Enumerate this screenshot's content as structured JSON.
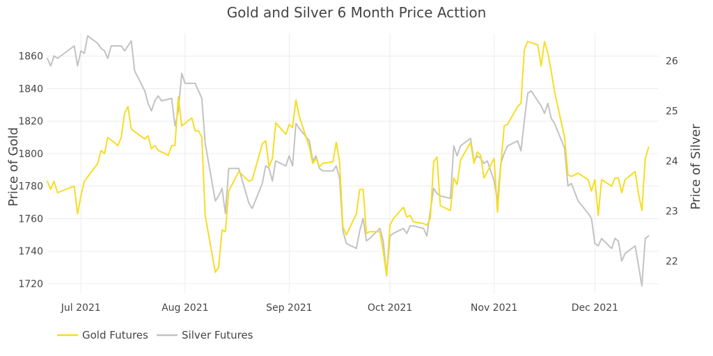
{
  "chart_data": {
    "type": "line",
    "title": "Gold and Silver 6 Month Price Acttion",
    "ylabel_left": "Price of Gold",
    "ylabel_right": "Price of Silver",
    "x_range": [
      "2021-06-21",
      "2021-12-20"
    ],
    "x_ticks": [
      {
        "date": "2021-07-01",
        "label": "Jul 2021"
      },
      {
        "date": "2021-08-01",
        "label": "Aug 2021"
      },
      {
        "date": "2021-09-01",
        "label": "Sep 2021"
      },
      {
        "date": "2021-10-01",
        "label": "Oct 2021"
      },
      {
        "date": "2021-11-01",
        "label": "Nov 2021"
      },
      {
        "date": "2021-12-01",
        "label": "Dec 2021"
      }
    ],
    "y_left": {
      "range": [
        1714,
        1874
      ],
      "ticks": [
        1720,
        1740,
        1760,
        1780,
        1800,
        1820,
        1840,
        1860
      ]
    },
    "y_right": {
      "range": [
        21.35,
        26.55
      ],
      "ticks": [
        22,
        23,
        24,
        25,
        26
      ]
    },
    "legend_position": "bottom-left",
    "grid": true,
    "series": [
      {
        "name": "Gold Futures",
        "axis": "left",
        "color": "#f6dd22",
        "points": [
          [
            "2021-06-21",
            1783
          ],
          [
            "2021-06-22",
            1778
          ],
          [
            "2021-06-23",
            1783
          ],
          [
            "2021-06-24",
            1776
          ],
          [
            "2021-06-29",
            1780
          ],
          [
            "2021-06-30",
            1763
          ],
          [
            "2021-07-01",
            1774
          ],
          [
            "2021-07-02",
            1783
          ],
          [
            "2021-07-06",
            1794
          ],
          [
            "2021-07-07",
            1802
          ],
          [
            "2021-07-08",
            1800
          ],
          [
            "2021-07-09",
            1810
          ],
          [
            "2021-07-12",
            1805
          ],
          [
            "2021-07-13",
            1810
          ],
          [
            "2021-07-14",
            1825
          ],
          [
            "2021-07-15",
            1829
          ],
          [
            "2021-07-16",
            1815
          ],
          [
            "2021-07-20",
            1809
          ],
          [
            "2021-07-21",
            1811
          ],
          [
            "2021-07-22",
            1803
          ],
          [
            "2021-07-23",
            1805
          ],
          [
            "2021-07-24",
            1802
          ],
          [
            "2021-07-27",
            1799
          ],
          [
            "2021-07-28",
            1805
          ],
          [
            "2021-07-29",
            1805
          ],
          [
            "2021-07-30",
            1835
          ],
          [
            "2021-07-31",
            1817
          ],
          [
            "2021-08-03",
            1822
          ],
          [
            "2021-08-04",
            1814
          ],
          [
            "2021-08-05",
            1814
          ],
          [
            "2021-08-06",
            1810
          ],
          [
            "2021-08-07",
            1762
          ],
          [
            "2021-08-10",
            1727
          ],
          [
            "2021-08-11",
            1730
          ],
          [
            "2021-08-12",
            1753
          ],
          [
            "2021-08-13",
            1752
          ],
          [
            "2021-08-14",
            1777
          ],
          [
            "2021-08-17",
            1789
          ],
          [
            "2021-08-20",
            1783
          ],
          [
            "2021-08-21",
            1784
          ],
          [
            "2021-08-24",
            1806
          ],
          [
            "2021-08-25",
            1808
          ],
          [
            "2021-08-26",
            1792
          ],
          [
            "2021-08-27",
            1797
          ],
          [
            "2021-08-28",
            1819
          ],
          [
            "2021-08-31",
            1812
          ],
          [
            "2021-09-01",
            1818
          ],
          [
            "2021-09-02",
            1816
          ],
          [
            "2021-09-03",
            1833
          ],
          [
            "2021-09-04",
            1823
          ],
          [
            "2021-09-07",
            1804
          ],
          [
            "2021-09-08",
            1794
          ],
          [
            "2021-09-09",
            1797
          ],
          [
            "2021-09-10",
            1792
          ],
          [
            "2021-09-11",
            1794
          ],
          [
            "2021-09-14",
            1795
          ],
          [
            "2021-09-15",
            1807
          ],
          [
            "2021-09-16",
            1795
          ],
          [
            "2021-09-17",
            1755
          ],
          [
            "2021-09-18",
            1750
          ],
          [
            "2021-09-21",
            1763
          ],
          [
            "2021-09-22",
            1778
          ],
          [
            "2021-09-23",
            1778
          ],
          [
            "2021-09-24",
            1751
          ],
          [
            "2021-09-25",
            1752
          ],
          [
            "2021-09-28",
            1752
          ],
          [
            "2021-09-29",
            1740
          ],
          [
            "2021-09-30",
            1725
          ],
          [
            "2021-10-01",
            1756
          ],
          [
            "2021-10-02",
            1760
          ],
          [
            "2021-10-05",
            1767
          ],
          [
            "2021-10-06",
            1761
          ],
          [
            "2021-10-07",
            1762
          ],
          [
            "2021-10-08",
            1758
          ],
          [
            "2021-10-11",
            1757
          ],
          [
            "2021-10-12",
            1756
          ],
          [
            "2021-10-13",
            1760
          ],
          [
            "2021-10-14",
            1795
          ],
          [
            "2021-10-15",
            1798
          ],
          [
            "2021-10-16",
            1768
          ],
          [
            "2021-10-19",
            1765
          ],
          [
            "2021-10-20",
            1785
          ],
          [
            "2021-10-21",
            1781
          ],
          [
            "2021-10-22",
            1796
          ],
          [
            "2021-10-25",
            1807
          ],
          [
            "2021-10-26",
            1794
          ],
          [
            "2021-10-27",
            1801
          ],
          [
            "2021-10-28",
            1799
          ],
          [
            "2021-10-29",
            1785
          ],
          [
            "2021-10-30",
            1789
          ],
          [
            "2021-11-01",
            1797
          ],
          [
            "2021-11-02",
            1764
          ],
          [
            "2021-11-03",
            1793
          ],
          [
            "2021-11-04",
            1817
          ],
          [
            "2021-11-05",
            1818
          ],
          [
            "2021-11-08",
            1829
          ],
          [
            "2021-11-09",
            1831
          ],
          [
            "2021-11-10",
            1864
          ],
          [
            "2021-11-11",
            1869
          ],
          [
            "2021-11-14",
            1867
          ],
          [
            "2021-11-15",
            1854
          ],
          [
            "2021-11-16",
            1869
          ],
          [
            "2021-11-17",
            1862
          ],
          [
            "2021-11-18",
            1851
          ],
          [
            "2021-11-19",
            1838
          ],
          [
            "2021-11-22",
            1810
          ],
          [
            "2021-11-23",
            1787
          ],
          [
            "2021-11-24",
            1786
          ],
          [
            "2021-11-26",
            1788
          ],
          [
            "2021-11-29",
            1784
          ],
          [
            "2021-11-30",
            1777
          ],
          [
            "2021-12-01",
            1784
          ],
          [
            "2021-12-02",
            1762
          ],
          [
            "2021-12-03",
            1784
          ],
          [
            "2021-12-06",
            1780
          ],
          [
            "2021-12-07",
            1785
          ],
          [
            "2021-12-08",
            1785
          ],
          [
            "2021-12-09",
            1776
          ],
          [
            "2021-12-10",
            1784
          ],
          [
            "2021-12-13",
            1789
          ],
          [
            "2021-12-14",
            1775
          ],
          [
            "2021-12-15",
            1765
          ],
          [
            "2021-12-16",
            1797
          ],
          [
            "2021-12-17",
            1804
          ]
        ]
      },
      {
        "name": "Silver Futures",
        "axis": "right",
        "color": "#c2c2c2",
        "points": [
          [
            "2021-06-21",
            26.05
          ],
          [
            "2021-06-22",
            25.9
          ],
          [
            "2021-06-23",
            26.1
          ],
          [
            "2021-06-24",
            26.05
          ],
          [
            "2021-06-29",
            26.3
          ],
          [
            "2021-06-30",
            25.9
          ],
          [
            "2021-07-01",
            26.2
          ],
          [
            "2021-07-02",
            26.15
          ],
          [
            "2021-07-03",
            26.5
          ],
          [
            "2021-07-06",
            26.35
          ],
          [
            "2021-07-07",
            26.25
          ],
          [
            "2021-07-08",
            26.2
          ],
          [
            "2021-07-09",
            26.05
          ],
          [
            "2021-07-10",
            26.3
          ],
          [
            "2021-07-13",
            26.3
          ],
          [
            "2021-07-14",
            26.2
          ],
          [
            "2021-07-16",
            26.4
          ],
          [
            "2021-07-17",
            25.8
          ],
          [
            "2021-07-20",
            25.4
          ],
          [
            "2021-07-21",
            25.15
          ],
          [
            "2021-07-22",
            25.0
          ],
          [
            "2021-07-23",
            25.2
          ],
          [
            "2021-07-24",
            25.3
          ],
          [
            "2021-07-25",
            25.2
          ],
          [
            "2021-07-28",
            25.25
          ],
          [
            "2021-07-29",
            24.7
          ],
          [
            "2021-07-30",
            25.0
          ],
          [
            "2021-07-31",
            25.75
          ],
          [
            "2021-08-01",
            25.55
          ],
          [
            "2021-08-04",
            25.55
          ],
          [
            "2021-08-05",
            25.4
          ],
          [
            "2021-08-06",
            25.25
          ],
          [
            "2021-08-07",
            24.35
          ],
          [
            "2021-08-10",
            23.2
          ],
          [
            "2021-08-11",
            23.3
          ],
          [
            "2021-08-12",
            23.45
          ],
          [
            "2021-08-13",
            22.95
          ],
          [
            "2021-08-14",
            23.85
          ],
          [
            "2021-08-17",
            23.85
          ],
          [
            "2021-08-20",
            23.15
          ],
          [
            "2021-08-21",
            23.05
          ],
          [
            "2021-08-24",
            23.55
          ],
          [
            "2021-08-25",
            23.9
          ],
          [
            "2021-08-26",
            23.85
          ],
          [
            "2021-08-27",
            23.6
          ],
          [
            "2021-08-28",
            24.0
          ],
          [
            "2021-08-31",
            23.9
          ],
          [
            "2021-09-01",
            24.1
          ],
          [
            "2021-09-02",
            23.9
          ],
          [
            "2021-09-03",
            24.75
          ],
          [
            "2021-09-04",
            24.65
          ],
          [
            "2021-09-07",
            24.4
          ],
          [
            "2021-09-08",
            24.0
          ],
          [
            "2021-09-09",
            24.1
          ],
          [
            "2021-09-10",
            23.85
          ],
          [
            "2021-09-11",
            23.8
          ],
          [
            "2021-09-14",
            23.8
          ],
          [
            "2021-09-15",
            23.9
          ],
          [
            "2021-09-16",
            23.65
          ],
          [
            "2021-09-17",
            22.6
          ],
          [
            "2021-09-18",
            22.35
          ],
          [
            "2021-09-21",
            22.25
          ],
          [
            "2021-09-22",
            22.6
          ],
          [
            "2021-09-23",
            22.85
          ],
          [
            "2021-09-24",
            22.4
          ],
          [
            "2021-09-25",
            22.45
          ],
          [
            "2021-09-28",
            22.65
          ],
          [
            "2021-09-29",
            22.4
          ],
          [
            "2021-09-30",
            21.7
          ],
          [
            "2021-10-01",
            22.5
          ],
          [
            "2021-10-02",
            22.55
          ],
          [
            "2021-10-05",
            22.65
          ],
          [
            "2021-10-06",
            22.55
          ],
          [
            "2021-10-07",
            22.7
          ],
          [
            "2021-10-08",
            22.7
          ],
          [
            "2021-10-11",
            22.65
          ],
          [
            "2021-10-12",
            22.5
          ],
          [
            "2021-10-13",
            23.0
          ],
          [
            "2021-10-14",
            23.45
          ],
          [
            "2021-10-15",
            23.35
          ],
          [
            "2021-10-16",
            23.3
          ],
          [
            "2021-10-19",
            23.25
          ],
          [
            "2021-10-20",
            24.3
          ],
          [
            "2021-10-21",
            24.1
          ],
          [
            "2021-10-22",
            24.3
          ],
          [
            "2021-10-25",
            24.45
          ],
          [
            "2021-10-26",
            24.0
          ],
          [
            "2021-10-27",
            24.1
          ],
          [
            "2021-10-28",
            24.05
          ],
          [
            "2021-10-29",
            23.95
          ],
          [
            "2021-10-30",
            24.0
          ],
          [
            "2021-11-01",
            23.6
          ],
          [
            "2021-11-02",
            23.2
          ],
          [
            "2021-11-03",
            23.95
          ],
          [
            "2021-11-04",
            24.15
          ],
          [
            "2021-11-05",
            24.3
          ],
          [
            "2021-11-08",
            24.4
          ],
          [
            "2021-11-09",
            24.2
          ],
          [
            "2021-11-10",
            24.8
          ],
          [
            "2021-11-11",
            25.35
          ],
          [
            "2021-11-12",
            25.4
          ],
          [
            "2021-11-15",
            25.1
          ],
          [
            "2021-11-16",
            24.95
          ],
          [
            "2021-11-17",
            25.15
          ],
          [
            "2021-11-18",
            24.85
          ],
          [
            "2021-11-19",
            24.75
          ],
          [
            "2021-11-22",
            24.25
          ],
          [
            "2021-11-23",
            23.5
          ],
          [
            "2021-11-24",
            23.55
          ],
          [
            "2021-11-26",
            23.2
          ],
          [
            "2021-11-29",
            22.95
          ],
          [
            "2021-11-30",
            22.85
          ],
          [
            "2021-12-01",
            22.35
          ],
          [
            "2021-12-02",
            22.3
          ],
          [
            "2021-12-03",
            22.45
          ],
          [
            "2021-12-06",
            22.25
          ],
          [
            "2021-12-07",
            22.45
          ],
          [
            "2021-12-08",
            22.4
          ],
          [
            "2021-12-09",
            22.0
          ],
          [
            "2021-12-10",
            22.15
          ],
          [
            "2021-12-13",
            22.3
          ],
          [
            "2021-12-14",
            21.9
          ],
          [
            "2021-12-15",
            21.5
          ],
          [
            "2021-12-16",
            22.45
          ],
          [
            "2021-12-17",
            22.5
          ]
        ]
      }
    ]
  }
}
